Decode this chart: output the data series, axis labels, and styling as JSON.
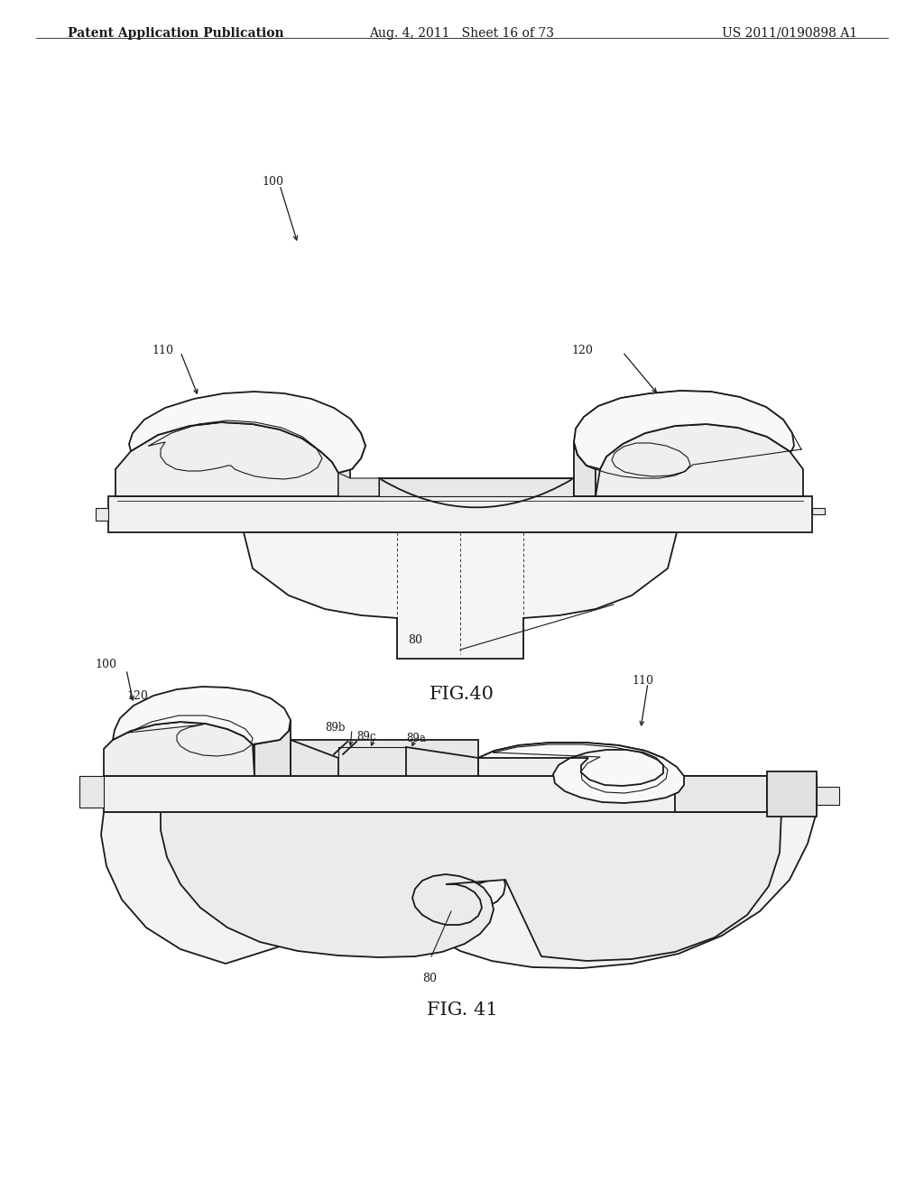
{
  "background_color": "#ffffff",
  "header_left": "Patent Application Publication",
  "header_center": "Aug. 4, 2011   Sheet 16 of 73",
  "header_right": "US 2011/0190898 A1",
  "line_color": "#1a1a1a",
  "fig40_caption": "FIG.40",
  "fig41_caption": "FIG. 41",
  "caption_fontsize": 15,
  "label_fontsize": 9,
  "header_fontsize": 10
}
